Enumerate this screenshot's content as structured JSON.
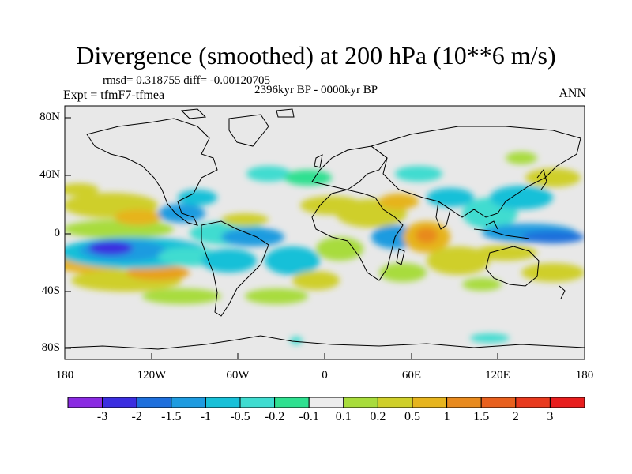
{
  "title": "Divergence (smoothed) at 200 hPa (10**6 m/s)",
  "stats": "rmsd= 0.318755 diff= -0.00120705",
  "experiment": "Expt = tfmF7-tfmea",
  "period": "2396kyr BP - 0000kyr BP",
  "season": "ANN",
  "map": {
    "land_background": "#e8e8e8",
    "y_tick_labels": [
      "80N",
      "40N",
      "0",
      "40S",
      "80S"
    ],
    "x_tick_labels": [
      "180",
      "120W",
      "60W",
      "0",
      "60E",
      "120E",
      "180"
    ]
  },
  "colorbar": {
    "labels": [
      "-3",
      "-2",
      "-1.5",
      "-1",
      "-0.5",
      "-0.2",
      "-0.1",
      "0.1",
      "0.2",
      "0.5",
      "1",
      "1.5",
      "2",
      "3"
    ],
    "colors": [
      "#8a2be2",
      "#3b2ee0",
      "#1e6fdc",
      "#1e9be0",
      "#18c0d8",
      "#3fdcd0",
      "#2fe090",
      "#ececec",
      "#a8dc3c",
      "#cfcf2a",
      "#e6b41e",
      "#e88a1e",
      "#e8601e",
      "#e83a1e",
      "#e81e1e"
    ]
  }
}
